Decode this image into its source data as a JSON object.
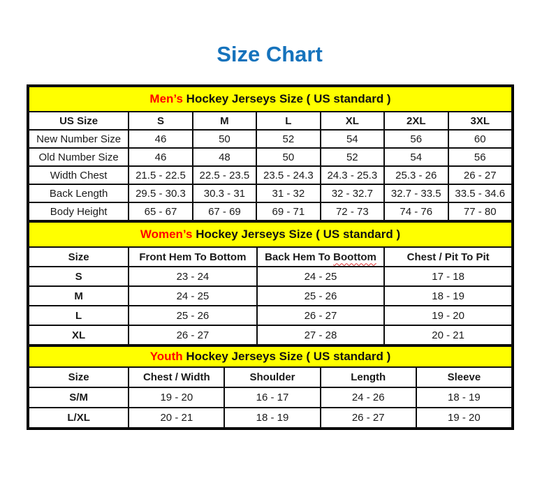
{
  "page": {
    "title": "Size Chart"
  },
  "colors": {
    "title_blue": "#1673bc",
    "band_yellow": "#ffff00",
    "highlight_red": "#ff0000",
    "border_black": "#000000",
    "squiggle_red": "#d33a2c"
  },
  "tables": [
    {
      "id": "mens",
      "heading": {
        "highlight": "Men’s",
        "rest": " Hockey Jerseys Size ( US standard )"
      },
      "columns": [
        "US Size",
        "S",
        "M",
        "L",
        "XL",
        "2XL",
        "3XL"
      ],
      "label_bold": false,
      "rows": [
        {
          "label": "New Number Size",
          "values": [
            "46",
            "50",
            "52",
            "54",
            "56",
            "60"
          ]
        },
        {
          "label": "Old Number Size",
          "values": [
            "46",
            "48",
            "50",
            "52",
            "54",
            "56"
          ]
        },
        {
          "label": "Width Chest",
          "values": [
            "21.5 - 22.5",
            "22.5 - 23.5",
            "23.5 - 24.3",
            "24.3 - 25.3",
            "25.3 - 26",
            "26 - 27"
          ]
        },
        {
          "label": "Back Length",
          "values": [
            "29.5 - 30.3",
            "30.3 - 31",
            "31 - 32",
            "32 - 32.7",
            "32.7 - 33.5",
            "33.5 - 34.6"
          ]
        },
        {
          "label": "Body Height",
          "values": [
            "65 - 67",
            "67 - 69",
            "69 - 71",
            "72 - 73",
            "74 - 76",
            "77 - 80"
          ]
        }
      ]
    },
    {
      "id": "womens",
      "heading": {
        "highlight": "Women’s",
        "rest": " Hockey Jerseys Size ( US standard )"
      },
      "columns": [
        "Size",
        "Front Hem To Bottom",
        {
          "text": "Back Hem To ",
          "misspelled": "Boottom"
        },
        "Chest / Pit To Pit"
      ],
      "label_bold": true,
      "rows": [
        {
          "label": "S",
          "values": [
            "23 - 24",
            "24 - 25",
            "17 - 18"
          ]
        },
        {
          "label": "M",
          "values": [
            "24 - 25",
            "25 - 26",
            "18 - 19"
          ]
        },
        {
          "label": "L",
          "values": [
            "25 - 26",
            "26 - 27",
            "19 - 20"
          ]
        },
        {
          "label": "XL",
          "values": [
            "26 - 27",
            "27 - 28",
            "20 - 21"
          ]
        }
      ]
    },
    {
      "id": "youth",
      "heading": {
        "highlight": "Youth",
        "rest": " Hockey Jerseys Size ( US standard )"
      },
      "columns": [
        "Size",
        "Chest / Width",
        "Shoulder",
        "Length",
        "Sleeve"
      ],
      "label_bold": true,
      "rows": [
        {
          "label": "S/M",
          "values": [
            "19 - 20",
            "16 - 17",
            "24 - 26",
            "18 - 19"
          ]
        },
        {
          "label": "L/XL",
          "values": [
            "20 - 21",
            "18 - 19",
            "26 - 27",
            "19 - 20"
          ]
        }
      ]
    }
  ]
}
